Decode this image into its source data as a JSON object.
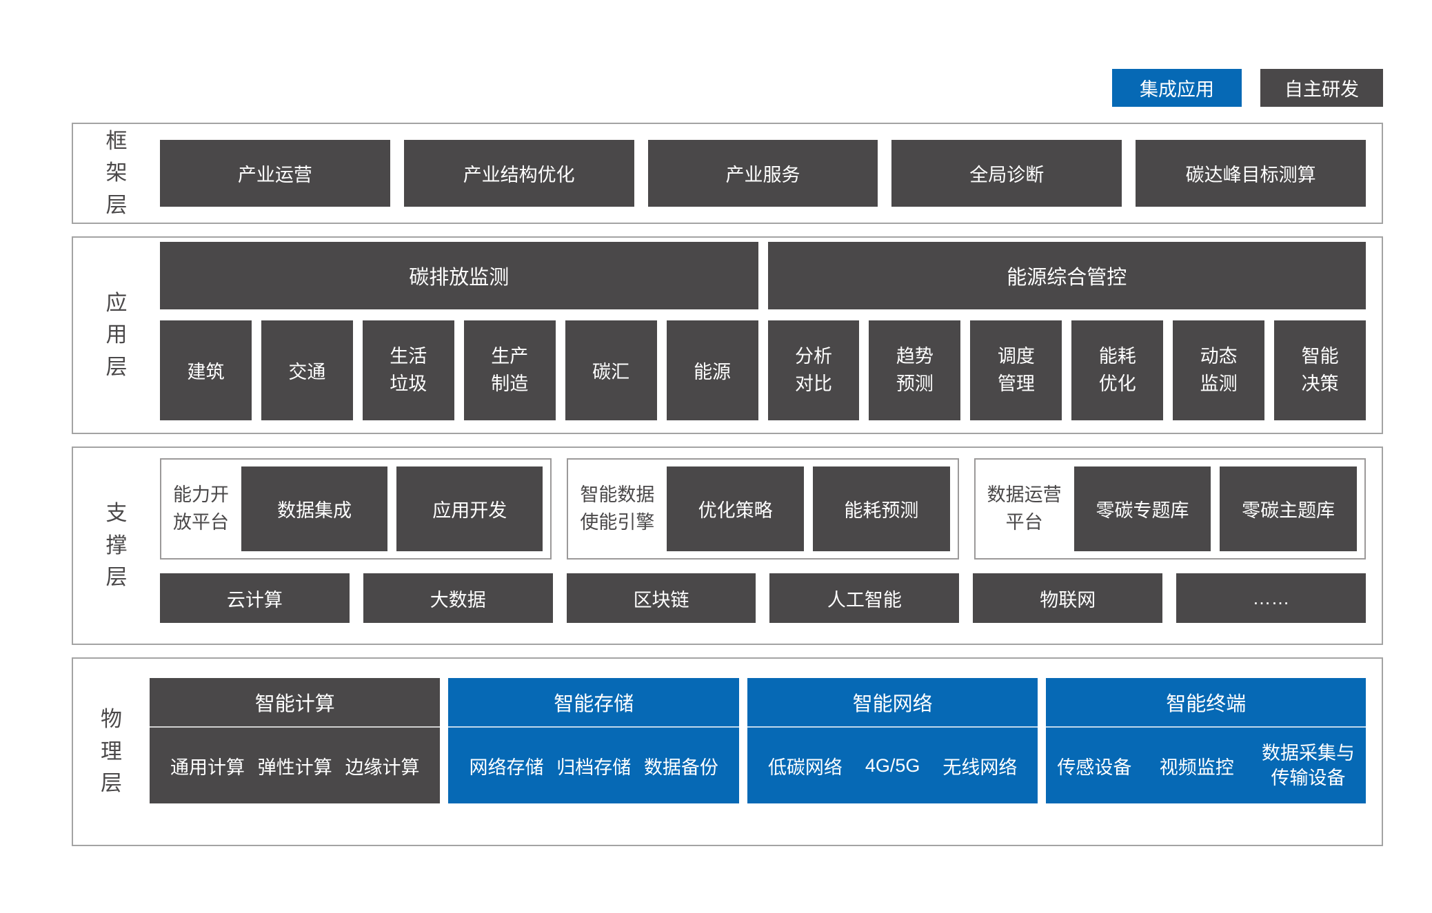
{
  "legend": {
    "integrated_label": "集成应用",
    "self_developed_label": "自主研发"
  },
  "colors": {
    "accent_blue": "#0669b5",
    "dark_gray": "#4a4849"
  },
  "layers": {
    "framework": {
      "label": "框架层",
      "items": [
        "产业运营",
        "产业结构优化",
        "产业服务",
        "全局诊断",
        "碳达峰目标测算"
      ]
    },
    "application": {
      "label": "应用层",
      "groups": [
        {
          "header": "碳排放监测",
          "items": [
            "建筑",
            "交通",
            "生活垃圾",
            "生产制造",
            "碳汇",
            "能源"
          ]
        },
        {
          "header": "能源综合管控",
          "items": [
            "分析对比",
            "趋势预测",
            "调度管理",
            "能耗优化",
            "动态监测",
            "智能决策"
          ]
        }
      ]
    },
    "support": {
      "label": "支撑层",
      "platforms": [
        {
          "name": "能力开放平台",
          "items": [
            "数据集成",
            "应用开发"
          ]
        },
        {
          "name": "智能数据使能引擎",
          "items": [
            "优化策略",
            "能耗预测"
          ]
        },
        {
          "name": "数据运营平台",
          "items": [
            "零碳专题库",
            "零碳主题库"
          ]
        }
      ],
      "technologies": [
        "云计算",
        "大数据",
        "区块链",
        "人工智能",
        "物联网",
        "……"
      ]
    },
    "physical": {
      "label": "物理层",
      "groups": [
        {
          "title": "智能计算",
          "style": "self_developed",
          "items": [
            "通用计算",
            "弹性计算",
            "边缘计算"
          ]
        },
        {
          "title": "智能存储",
          "style": "integrated",
          "items": [
            "网络存储",
            "归档存储",
            "数据备份"
          ]
        },
        {
          "title": "智能网络",
          "style": "integrated",
          "items": [
            "低碳网络",
            "4G/5G",
            "无线网络"
          ]
        },
        {
          "title": "智能终端",
          "style": "integrated",
          "items": [
            "传感设备",
            "视频监控",
            "数据采集与传输设备"
          ]
        }
      ]
    }
  }
}
